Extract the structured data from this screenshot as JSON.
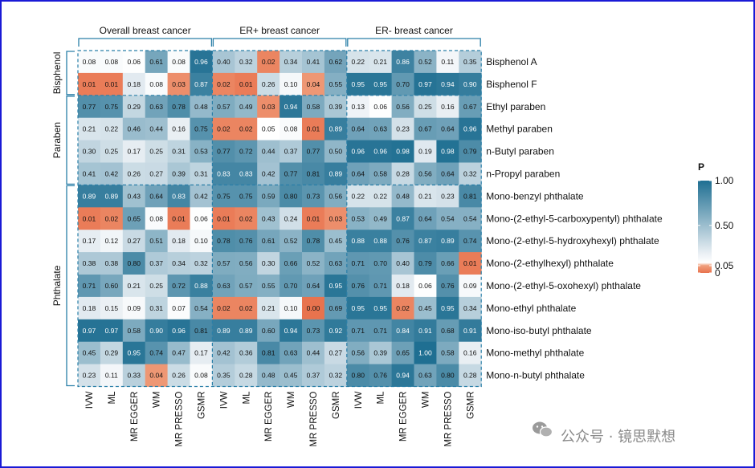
{
  "chart_data": {
    "type": "heatmap",
    "legend": {
      "title": "P",
      "ticks": [
        "1.00",
        "0.50",
        "0.05",
        "0"
      ]
    },
    "column_groups": [
      {
        "name": "Overall breast cancer",
        "columns": [
          "IVW",
          "ML",
          "MR EGGER",
          "WM",
          "MR PRESSO",
          "GSMR"
        ]
      },
      {
        "name": "ER+ breast cancer",
        "columns": [
          "IVW",
          "ML",
          "MR EGGER",
          "WM",
          "MR PRESSO",
          "GSMR"
        ]
      },
      {
        "name": "ER- breast cancer",
        "columns": [
          "IVW",
          "ML",
          "MR EGGER",
          "WM",
          "MR PRESSO",
          "GSMR"
        ]
      }
    ],
    "row_groups": [
      {
        "name": "Bisphenol",
        "rows": 2
      },
      {
        "name": "Paraben",
        "rows": 4
      },
      {
        "name": "Phthalate",
        "rows": 9
      }
    ],
    "rows": [
      "Bisphenol A",
      "Bisphenol F",
      "Ethyl paraben",
      "Methyl paraben",
      "n-Butyl paraben",
      "n-Propyl paraben",
      "Mono-benzyl phthalate",
      "Mono-(2-ethyl-5-carboxypentyl) phthalate",
      "Mono-(2-ethyl-5-hydroxyhexyl) phthalate",
      "Mono-(2-ethylhexyl) phthalate",
      "Mono-(2-ethyl-5-oxohexyl) phthalate",
      "Mono-ethyl phthalate",
      "Mono-iso-butyl phthalate",
      "Mono-methyl phthalate",
      "Mono-n-butyl phthalate"
    ],
    "values": [
      [
        "0.08",
        "0.08",
        "0.06",
        "0.61",
        "0.08",
        "0.96",
        "0.40",
        "0.32",
        "0.02",
        "0.34",
        "0.41",
        "0.62",
        "0.22",
        "0.21",
        "0.86",
        "0.52",
        "0.11",
        "0.35"
      ],
      [
        "0.01",
        "0.01",
        "0.18",
        "0.08",
        "0.03",
        "0.87",
        "0.02",
        "0.01",
        "0.26",
        "0.10",
        "0.04",
        "0.55",
        "0.95",
        "0.95",
        "0.70",
        "0.97",
        "0.94",
        "0.90"
      ],
      [
        "0.77",
        "0.75",
        "0.29",
        "0.63",
        "0.78",
        "0.48",
        "0.57",
        "0.49",
        "0.03",
        "0.94",
        "0.58",
        "0.39",
        "0.13",
        "0.06",
        "0.56",
        "0.25",
        "0.16",
        "0.67"
      ],
      [
        "0.21",
        "0.22",
        "0.46",
        "0.44",
        "0.16",
        "0.75",
        "0.02",
        "0.02",
        "0.05",
        "0.08",
        "0.01",
        "0.89",
        "0.64",
        "0.63",
        "0.23",
        "0.67",
        "0.64",
        "0.96"
      ],
      [
        "0.30",
        "0.25",
        "0.17",
        "0.25",
        "0.31",
        "0.53",
        "0.77",
        "0.72",
        "0.44",
        "0.37",
        "0.77",
        "0.50",
        "0.96",
        "0.96",
        "0.98",
        "0.19",
        "0.98",
        "0.79"
      ],
      [
        "0.41",
        "0.42",
        "0.26",
        "0.27",
        "0.39",
        "0.31",
        "0.83",
        "0.83",
        "0.42",
        "0.77",
        "0.81",
        "0.89",
        "0.64",
        "0.58",
        "0.28",
        "0.56",
        "0.64",
        "0.32"
      ],
      [
        "0.89",
        "0.89",
        "0.43",
        "0.64",
        "0.83",
        "0.42",
        "0.75",
        "0.75",
        "0.59",
        "0.80",
        "0.73",
        "0.56",
        "0.22",
        "0.22",
        "0.48",
        "0.21",
        "0.23",
        "0.81"
      ],
      [
        "0.01",
        "0.02",
        "0.65",
        "0.08",
        "0.01",
        "0.06",
        "0.01",
        "0.02",
        "0.43",
        "0.24",
        "0.01",
        "0.03",
        "0.53",
        "0.49",
        "0.87",
        "0.64",
        "0.54",
        "0.54"
      ],
      [
        "0.17",
        "0.12",
        "0.27",
        "0.51",
        "0.18",
        "0.10",
        "0.78",
        "0.76",
        "0.61",
        "0.52",
        "0.78",
        "0.45",
        "0.88",
        "0.88",
        "0.76",
        "0.87",
        "0.89",
        "0.74"
      ],
      [
        "0.38",
        "0.38",
        "0.80",
        "0.37",
        "0.34",
        "0.32",
        "0.57",
        "0.56",
        "0.30",
        "0.66",
        "0.52",
        "0.63",
        "0.71",
        "0.70",
        "0.40",
        "0.79",
        "0.66",
        "0.01"
      ],
      [
        "0.71",
        "0.60",
        "0.21",
        "0.25",
        "0.72",
        "0.88",
        "0.63",
        "0.57",
        "0.55",
        "0.70",
        "0.64",
        "0.95",
        "0.76",
        "0.71",
        "0.18",
        "0.06",
        "0.76",
        "0.09"
      ],
      [
        "0.18",
        "0.15",
        "0.09",
        "0.31",
        "0.07",
        "0.54",
        "0.02",
        "0.02",
        "0.21",
        "0.10",
        "0.00",
        "0.69",
        "0.95",
        "0.95",
        "0.02",
        "0.45",
        "0.95",
        "0.34"
      ],
      [
        "0.97",
        "0.97",
        "0.58",
        "0.90",
        "0.96",
        "0.81",
        "0.89",
        "0.89",
        "0.60",
        "0.94",
        "0.73",
        "0.92",
        "0.71",
        "0.71",
        "0.84",
        "0.91",
        "0.68",
        "0.91"
      ],
      [
        "0.45",
        "0.29",
        "0.95",
        "0.74",
        "0.47",
        "0.17",
        "0.42",
        "0.36",
        "0.81",
        "0.63",
        "0.44",
        "0.27",
        "0.56",
        "0.39",
        "0.65",
        "1.00",
        "0.58",
        "0.16"
      ],
      [
        "0.23",
        "0.11",
        "0.33",
        "0.04",
        "0.26",
        "0.08",
        "0.35",
        "0.28",
        "0.48",
        "0.45",
        "0.37",
        "0.32",
        "0.80",
        "0.76",
        "0.94",
        "0.63",
        "0.80",
        "0.28"
      ]
    ],
    "colors": {
      "high": "#1f6f92",
      "mid": "#e8eef3",
      "low": "#f0a07e",
      "lowest": "#e8734e"
    }
  },
  "watermark": {
    "text": "公众号 · 镜思默想"
  }
}
